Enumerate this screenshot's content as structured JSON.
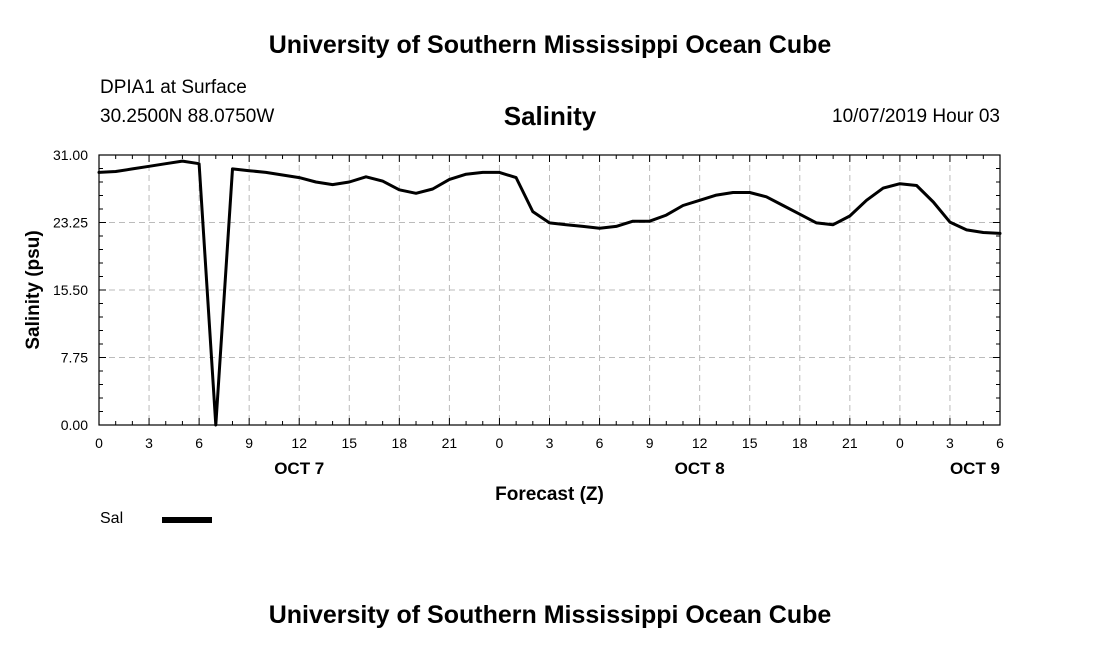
{
  "header": {
    "title": "University of Southern Mississippi Ocean Cube",
    "station": "DPIA1 at Surface",
    "coords": "30.2500N 88.0750W",
    "datetime": "10/07/2019 Hour 03"
  },
  "footer": {
    "title": "University of Southern Mississippi Ocean Cube"
  },
  "legend": {
    "label": "Sal"
  },
  "colors": {
    "line": "#000000",
    "grid": "#bbbbbb",
    "axis": "#000000"
  },
  "chart_data": {
    "type": "line",
    "title": "Salinity",
    "xlabel": "Forecast (Z)",
    "ylabel": "Salinity (psu)",
    "ylim": [
      0,
      31
    ],
    "xlim": [
      0,
      54
    ],
    "yticks": [
      "0.00",
      "7.75",
      "15.50",
      "23.25",
      "31.00"
    ],
    "xticks": [
      "0",
      "3",
      "6",
      "9",
      "12",
      "15",
      "18",
      "21",
      "0",
      "3",
      "6",
      "9",
      "12",
      "15",
      "18",
      "21",
      "0",
      "3",
      "6"
    ],
    "day_labels": [
      {
        "label": "OCT 7",
        "x": 12
      },
      {
        "label": "OCT 8",
        "x": 36
      },
      {
        "label": "OCT 9",
        "x": 52.5
      }
    ],
    "grid": true,
    "legend_position": "bottom-left",
    "series": [
      {
        "name": "Sal",
        "x": [
          0,
          1,
          2,
          3,
          4,
          5,
          6,
          7,
          8,
          9,
          10,
          11,
          12,
          13,
          14,
          15,
          16,
          17,
          18,
          19,
          20,
          21,
          22,
          23,
          24,
          25,
          26,
          27,
          28,
          29,
          30,
          31,
          32,
          33,
          34,
          35,
          36,
          37,
          38,
          39,
          40,
          41,
          42,
          43,
          44,
          45,
          46,
          47,
          48,
          49,
          50,
          51,
          52,
          53,
          54
        ],
        "y": [
          29.0,
          29.1,
          29.4,
          29.7,
          30.0,
          30.3,
          30.0,
          0.0,
          29.4,
          29.2,
          29.0,
          28.7,
          28.4,
          27.9,
          27.6,
          27.9,
          28.5,
          28.0,
          27.0,
          26.6,
          27.1,
          28.2,
          28.8,
          29.0,
          29.0,
          28.4,
          24.5,
          23.2,
          23.0,
          22.8,
          22.6,
          22.8,
          23.4,
          23.4,
          24.1,
          25.2,
          25.8,
          26.4,
          26.7,
          26.7,
          26.2,
          25.2,
          24.2,
          23.2,
          23.0,
          24.0,
          25.8,
          27.2,
          27.7,
          27.5,
          25.6,
          23.3,
          22.4,
          22.1,
          22.0
        ]
      }
    ]
  }
}
